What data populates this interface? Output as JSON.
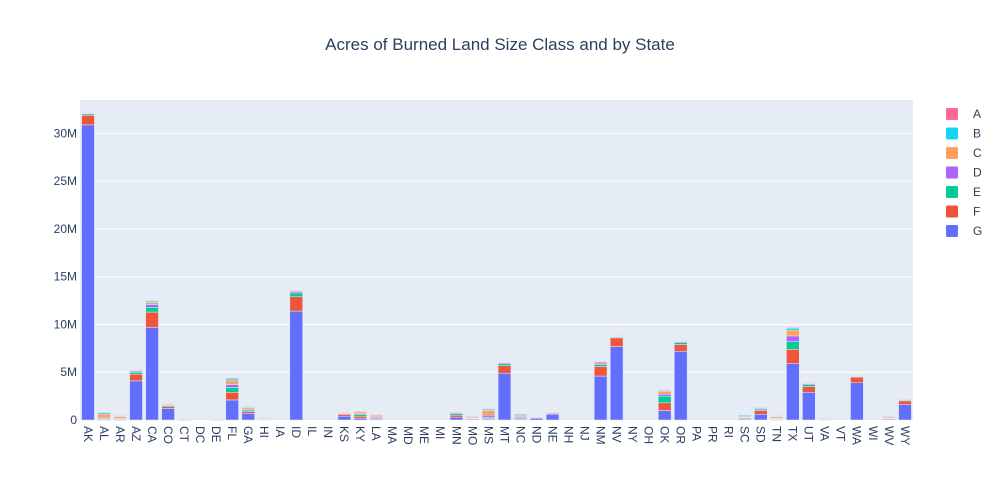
{
  "chart_data": {
    "type": "bar",
    "stacked": true,
    "title": "Acres of Burned Land Size Class and by State",
    "xlabel": "",
    "ylabel": "",
    "ylim": [
      0,
      33500000
    ],
    "yticks": [
      {
        "value": 0,
        "label": "0"
      },
      {
        "value": 5000000,
        "label": "5M"
      },
      {
        "value": 10000000,
        "label": "10M"
      },
      {
        "value": 15000000,
        "label": "15M"
      },
      {
        "value": 20000000,
        "label": "20M"
      },
      {
        "value": 25000000,
        "label": "25M"
      },
      {
        "value": 30000000,
        "label": "30M"
      }
    ],
    "grid": true,
    "legend_position": "right",
    "categories": [
      "AK",
      "AL",
      "AR",
      "AZ",
      "CA",
      "CO",
      "CT",
      "DC",
      "DE",
      "FL",
      "GA",
      "HI",
      "IA",
      "ID",
      "IL",
      "IN",
      "KS",
      "KY",
      "LA",
      "MA",
      "MD",
      "ME",
      "MI",
      "MN",
      "MO",
      "MS",
      "MT",
      "NC",
      "ND",
      "NE",
      "NH",
      "NJ",
      "NM",
      "NV",
      "NY",
      "OH",
      "OK",
      "OR",
      "PA",
      "PR",
      "RI",
      "SC",
      "SD",
      "TN",
      "TX",
      "UT",
      "VA",
      "VT",
      "WA",
      "WI",
      "WV",
      "WY"
    ],
    "series": [
      {
        "name": "G",
        "color": "#636efa",
        "values": [
          30900000,
          20000,
          10000,
          4100000,
          9700000,
          1200000,
          0,
          0,
          0,
          2100000,
          700000,
          50000,
          0,
          11400000,
          0,
          0,
          400000,
          200000,
          100000,
          0,
          0,
          0,
          0,
          300000,
          100000,
          100000,
          4900000,
          100000,
          200000,
          600000,
          0,
          0,
          4600000,
          7700000,
          0,
          0,
          1000000,
          7200000,
          0,
          0,
          0,
          100000,
          600000,
          50000,
          5900000,
          2900000,
          50000,
          0,
          3900000,
          0,
          100000,
          1600000
        ]
      },
      {
        "name": "F",
        "color": "#ef553b",
        "values": [
          1000000,
          50000,
          50000,
          700000,
          1600000,
          200000,
          0,
          0,
          0,
          800000,
          200000,
          20000,
          0,
          1500000,
          0,
          0,
          200000,
          200000,
          100000,
          0,
          0,
          0,
          0,
          200000,
          50000,
          100000,
          800000,
          50000,
          50000,
          100000,
          0,
          0,
          1000000,
          900000,
          0,
          0,
          800000,
          700000,
          0,
          0,
          0,
          50000,
          400000,
          50000,
          1500000,
          600000,
          20000,
          0,
          600000,
          0,
          50000,
          400000
        ]
      },
      {
        "name": "E",
        "color": "#00cc96",
        "values": [
          150000,
          50000,
          50000,
          200000,
          500000,
          100000,
          20000,
          0,
          10000,
          500000,
          150000,
          20000,
          0,
          400000,
          0,
          0,
          50000,
          150000,
          50000,
          0,
          0,
          0,
          0,
          150000,
          50000,
          100000,
          200000,
          100000,
          20000,
          50000,
          0,
          0,
          200000,
          100000,
          0,
          0,
          700000,
          200000,
          0,
          0,
          0,
          100000,
          150000,
          50000,
          800000,
          200000,
          30000,
          0,
          50000,
          0,
          50000,
          100000
        ]
      },
      {
        "name": "D",
        "color": "#ab63fa",
        "values": [
          50000,
          100000,
          50000,
          100000,
          300000,
          80000,
          10000,
          0,
          5000,
          300000,
          100000,
          20000,
          0,
          150000,
          0,
          0,
          50000,
          100000,
          100000,
          0,
          0,
          0,
          0,
          100000,
          50000,
          200000,
          100000,
          100000,
          10000,
          30000,
          0,
          0,
          150000,
          50000,
          0,
          0,
          200000,
          100000,
          0,
          0,
          0,
          50000,
          80000,
          50000,
          600000,
          100000,
          30000,
          0,
          20000,
          0,
          50000,
          50000
        ]
      },
      {
        "name": "C",
        "color": "#ffa15a",
        "values": [
          50000,
          400000,
          200000,
          100000,
          200000,
          80000,
          10000,
          0,
          5000,
          400000,
          150000,
          30000,
          0,
          100000,
          0,
          0,
          50000,
          200000,
          150000,
          0,
          0,
          0,
          0,
          100000,
          100000,
          500000,
          50000,
          150000,
          10000,
          20000,
          0,
          0,
          150000,
          50000,
          0,
          0,
          300000,
          50000,
          0,
          0,
          0,
          100000,
          50000,
          150000,
          600000,
          80000,
          50000,
          0,
          20000,
          0,
          100000,
          30000
        ]
      },
      {
        "name": "B",
        "color": "#19d3f3",
        "values": [
          20000,
          150000,
          80000,
          50000,
          150000,
          50000,
          5000,
          0,
          5000,
          200000,
          80000,
          20000,
          0,
          50000,
          0,
          0,
          20000,
          80000,
          80000,
          0,
          0,
          0,
          0,
          50000,
          50000,
          150000,
          30000,
          100000,
          5000,
          10000,
          0,
          0,
          50000,
          20000,
          0,
          0,
          100000,
          30000,
          0,
          0,
          0,
          100000,
          30000,
          80000,
          200000,
          50000,
          40000,
          0,
          10000,
          0,
          50000,
          20000
        ]
      },
      {
        "name": "A",
        "color": "#ff6692",
        "values": [
          10000,
          50000,
          30000,
          20000,
          50000,
          20000,
          5000,
          0,
          5000,
          100000,
          40000,
          10000,
          0,
          20000,
          0,
          0,
          10000,
          30000,
          30000,
          0,
          0,
          0,
          0,
          20000,
          20000,
          50000,
          10000,
          50000,
          5000,
          5000,
          0,
          0,
          20000,
          10000,
          0,
          0,
          50000,
          10000,
          0,
          0,
          0,
          50000,
          10000,
          30000,
          80000,
          20000,
          20000,
          0,
          10000,
          0,
          20000,
          10000
        ]
      }
    ],
    "legend_order": [
      "A",
      "B",
      "C",
      "D",
      "E",
      "F",
      "G"
    ]
  }
}
